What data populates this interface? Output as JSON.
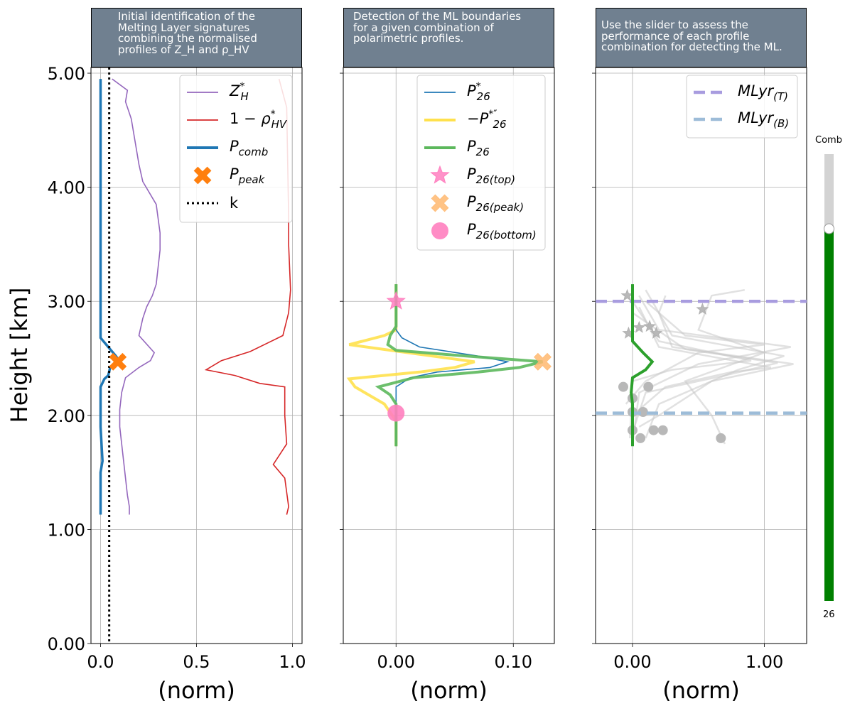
{
  "figure": {
    "ylabel": "Height [km]",
    "xlabel": "(norm)",
    "yticks": [
      "0.00",
      "1.00",
      "2.00",
      "3.00",
      "4.00",
      "5.00"
    ],
    "ylim": [
      0,
      5.05
    ]
  },
  "panels": [
    {
      "header_lines": [
        "Initial identification of the",
        "Melting Layer signatures",
        "combining the normalised",
        "profiles of Z_H and ρ_HV"
      ],
      "xticks": [
        "0.0",
        "0.5",
        "1.0"
      ],
      "xlim": [
        -0.05,
        1.05
      ],
      "legend": [
        {
          "label": "Z*_H",
          "color": "#9467bd",
          "kind": "line"
        },
        {
          "label": "1 − ρ*_HV",
          "color": "#d62728",
          "kind": "line"
        },
        {
          "label": "P_comb",
          "color": "#1f77b4",
          "kind": "thickline"
        },
        {
          "label": "P_peak",
          "color": "#ff7f0e",
          "kind": "cross"
        },
        {
          "label": "k",
          "color": "#000000",
          "kind": "dotted"
        }
      ]
    },
    {
      "header_lines": [
        "Detection of the ML boundaries",
        "for a given combination of",
        "polarimetric profiles."
      ],
      "xticks": [
        "0.00",
        "0.10"
      ],
      "xlim": [
        -0.045,
        0.135
      ],
      "legend": [
        {
          "label": "P*_26",
          "color": "#1f77b4",
          "kind": "line"
        },
        {
          "label": "−P*″_26",
          "color": "#ffe14d",
          "kind": "thickline"
        },
        {
          "label": "P_26",
          "color": "#5cb85c",
          "kind": "thickline"
        },
        {
          "label": "P_26(top)",
          "color": "#ff7fbf",
          "kind": "star"
        },
        {
          "label": "P_26(peak)",
          "color": "#ffb870",
          "kind": "cross"
        },
        {
          "label": "P_26(bottom)",
          "color": "#ff7fbf",
          "kind": "circle"
        }
      ]
    },
    {
      "header_lines": [
        "Use the slider to assess the",
        "performance of each profile",
        "combination for detecting the ML."
      ],
      "xticks": [
        "0.00",
        "1.00"
      ],
      "xlim": [
        -0.28,
        1.32
      ],
      "legend": [
        {
          "label": "MLyr_(T)",
          "color": "#a89cdf",
          "kind": "dashed"
        },
        {
          "label": "MLyr_(B)",
          "color": "#9dbcd8",
          "kind": "dashed"
        }
      ]
    }
  ],
  "slider": {
    "label": "Comb",
    "value": "26",
    "fill_fraction": 0.833,
    "fill_color": "#008000",
    "track_color": "#d3d3d3"
  },
  "chart_data": [
    {
      "type": "line",
      "panel": 1,
      "series": [
        {
          "name": "Z*_H",
          "color": "#9467bd",
          "points": [
            [
              0.15,
              1.13
            ],
            [
              0.15,
              1.2
            ],
            [
              0.14,
              1.3
            ],
            [
              0.13,
              1.45
            ],
            [
              0.12,
              1.6
            ],
            [
              0.11,
              1.75
            ],
            [
              0.1,
              1.9
            ],
            [
              0.1,
              2.05
            ],
            [
              0.11,
              2.2
            ],
            [
              0.13,
              2.33
            ],
            [
              0.2,
              2.42
            ],
            [
              0.26,
              2.48
            ],
            [
              0.28,
              2.55
            ],
            [
              0.2,
              2.7
            ],
            [
              0.22,
              2.85
            ],
            [
              0.24,
              2.95
            ],
            [
              0.27,
              3.05
            ],
            [
              0.29,
              3.15
            ],
            [
              0.3,
              3.3
            ],
            [
              0.31,
              3.45
            ],
            [
              0.31,
              3.6
            ],
            [
              0.29,
              3.85
            ],
            [
              0.22,
              4.05
            ],
            [
              0.2,
              4.2
            ],
            [
              0.18,
              4.4
            ],
            [
              0.16,
              4.6
            ],
            [
              0.13,
              4.75
            ],
            [
              0.14,
              4.85
            ],
            [
              0.06,
              4.95
            ]
          ]
        },
        {
          "name": "1 − ρ*_HV",
          "color": "#d62728",
          "points": [
            [
              0.97,
              1.13
            ],
            [
              0.98,
              1.2
            ],
            [
              0.96,
              1.45
            ],
            [
              0.9,
              1.57
            ],
            [
              0.97,
              1.75
            ],
            [
              0.96,
              2.0
            ],
            [
              0.96,
              2.25
            ],
            [
              0.83,
              2.28
            ],
            [
              0.7,
              2.35
            ],
            [
              0.55,
              2.4
            ],
            [
              0.63,
              2.48
            ],
            [
              0.78,
              2.56
            ],
            [
              0.95,
              2.7
            ],
            [
              0.98,
              2.9
            ],
            [
              0.99,
              3.1
            ],
            [
              0.98,
              3.5
            ],
            [
              0.98,
              3.75
            ],
            [
              0.97,
              4.7
            ],
            [
              0.93,
              4.95
            ]
          ]
        },
        {
          "name": "P_comb",
          "color": "#1f77b4",
          "points": [
            [
              0.0,
              1.13
            ],
            [
              0.0,
              1.5
            ],
            [
              0.01,
              1.6
            ],
            [
              0.0,
              1.9
            ],
            [
              0.0,
              2.25
            ],
            [
              0.02,
              2.32
            ],
            [
              0.04,
              2.35
            ],
            [
              0.05,
              2.42
            ],
            [
              0.1,
              2.47
            ],
            [
              0.08,
              2.52
            ],
            [
              0.04,
              2.6
            ],
            [
              0.0,
              2.68
            ],
            [
              0.0,
              3.0
            ],
            [
              0.0,
              4.95
            ]
          ]
        },
        {
          "name": "k",
          "color": "#000000",
          "x": 0.045
        },
        {
          "name": "P_peak",
          "color": "#ff7f0e",
          "points": [
            [
              0.09,
              2.47
            ]
          ]
        }
      ]
    },
    {
      "type": "line",
      "panel": 2,
      "series": [
        {
          "name": "P*_26",
          "color": "#1f77b4",
          "points": [
            [
              0.0,
              1.73
            ],
            [
              0.0,
              2.1
            ],
            [
              0.0,
              2.25
            ],
            [
              0.012,
              2.33
            ],
            [
              0.035,
              2.38
            ],
            [
              0.08,
              2.42
            ],
            [
              0.095,
              2.47
            ],
            [
              0.07,
              2.52
            ],
            [
              0.02,
              2.6
            ],
            [
              0.005,
              2.68
            ],
            [
              0.0,
              2.75
            ],
            [
              0.0,
              3.15
            ]
          ]
        },
        {
          "name": "−P*″_26",
          "color": "#ffe14d",
          "points": [
            [
              0.0,
              1.73
            ],
            [
              0.0,
              1.95
            ],
            [
              -0.01,
              2.1
            ],
            [
              -0.035,
              2.25
            ],
            [
              -0.04,
              2.32
            ],
            [
              0.02,
              2.38
            ],
            [
              0.05,
              2.42
            ],
            [
              0.067,
              2.47
            ],
            [
              0.01,
              2.55
            ],
            [
              -0.04,
              2.62
            ],
            [
              -0.01,
              2.7
            ],
            [
              0.0,
              2.75
            ],
            [
              0.0,
              3.15
            ]
          ]
        },
        {
          "name": "P_26",
          "color": "#5cb85c",
          "points": [
            [
              0.0,
              1.73
            ],
            [
              0.0,
              2.1
            ],
            [
              -0.005,
              2.18
            ],
            [
              -0.015,
              2.25
            ],
            [
              0.015,
              2.33
            ],
            [
              0.07,
              2.38
            ],
            [
              0.105,
              2.42
            ],
            [
              0.125,
              2.47
            ],
            [
              0.06,
              2.52
            ],
            [
              0.0,
              2.57
            ],
            [
              -0.007,
              2.62
            ],
            [
              -0.005,
              2.7
            ],
            [
              0.0,
              2.78
            ],
            [
              0.0,
              3.15
            ]
          ]
        },
        {
          "name": "P_26(top)",
          "color": "#ff7fbf",
          "points": [
            [
              0.0,
              3.0
            ]
          ]
        },
        {
          "name": "P_26(peak)",
          "color": "#ffb870",
          "points": [
            [
              0.125,
              2.47
            ]
          ]
        },
        {
          "name": "P_26(bottom)",
          "color": "#ff7fbf",
          "points": [
            [
              0.0,
              2.02
            ]
          ]
        }
      ]
    },
    {
      "type": "line",
      "panel": 3,
      "series": [
        {
          "name": "MLyr_(T)",
          "color": "#a89cdf",
          "y": 3.0
        },
        {
          "name": "MLyr_(B)",
          "color": "#9dbcd8",
          "y": 2.02
        },
        {
          "name": "P_26",
          "color": "#2ca02c",
          "points": [
            [
              0.0,
              1.73
            ],
            [
              0.0,
              2.1
            ],
            [
              -0.01,
              2.2
            ],
            [
              0.0,
              2.33
            ],
            [
              0.1,
              2.4
            ],
            [
              0.15,
              2.47
            ],
            [
              0.08,
              2.55
            ],
            [
              0.0,
              2.65
            ],
            [
              0.0,
              2.75
            ],
            [
              0.0,
              3.15
            ]
          ]
        },
        {
          "name": "grey",
          "color": "#c8c8c8",
          "lines": [
            [
              [
                0.0,
                1.75
              ],
              [
                0.05,
                2.2
              ],
              [
                0.5,
                2.45
              ],
              [
                1.2,
                2.6
              ],
              [
                0.2,
                2.75
              ],
              [
                0.05,
                3.05
              ]
            ],
            [
              [
                0.1,
                1.8
              ],
              [
                0.2,
                2.1
              ],
              [
                0.8,
                2.4
              ],
              [
                1.15,
                2.52
              ],
              [
                0.3,
                2.7
              ],
              [
                0.1,
                3.1
              ]
            ],
            [
              [
                -0.02,
                1.8
              ],
              [
                0.0,
                2.3
              ],
              [
                0.3,
                2.4
              ],
              [
                0.9,
                2.48
              ],
              [
                0.2,
                2.65
              ],
              [
                0.0,
                3.0
              ]
            ],
            [
              [
                0.0,
                1.85
              ],
              [
                0.1,
                2.2
              ],
              [
                0.7,
                2.35
              ],
              [
                1.1,
                2.46
              ],
              [
                0.4,
                2.58
              ],
              [
                0.0,
                2.9
              ]
            ],
            [
              [
                0.7,
                1.75
              ],
              [
                0.6,
                2.0
              ],
              [
                0.4,
                2.3
              ],
              [
                1.0,
                2.55
              ],
              [
                0.5,
                2.75
              ],
              [
                0.6,
                3.05
              ],
              [
                0.85,
                3.1
              ]
            ],
            [
              [
                0.05,
                1.9
              ],
              [
                0.2,
                2.0
              ],
              [
                0.6,
                2.3
              ],
              [
                1.22,
                2.45
              ],
              [
                0.3,
                2.6
              ],
              [
                0.2,
                2.9
              ],
              [
                0.25,
                3.05
              ]
            ],
            [
              [
                -0.05,
                2.1
              ],
              [
                0.1,
                2.3
              ],
              [
                0.5,
                2.55
              ],
              [
                1.0,
                2.62
              ],
              [
                0.4,
                2.7
              ],
              [
                0.1,
                3.0
              ]
            ],
            [
              [
                0.0,
                2.0
              ],
              [
                0.25,
                2.25
              ],
              [
                0.75,
                2.38
              ],
              [
                1.05,
                2.42
              ],
              [
                0.2,
                2.6
              ],
              [
                0.05,
                2.95
              ]
            ]
          ],
          "stars": [
            [
              0.53,
              2.93
            ],
            [
              -0.03,
              2.72
            ],
            [
              0.05,
              2.77
            ],
            [
              0.13,
              2.78
            ],
            [
              0.18,
              2.72
            ],
            [
              -0.04,
              3.05
            ]
          ],
          "circles": [
            [
              -0.07,
              2.25
            ],
            [
              0.12,
              2.25
            ],
            [
              0.0,
              2.03
            ],
            [
              0.08,
              2.03
            ],
            [
              0.0,
              1.87
            ],
            [
              0.16,
              1.87
            ],
            [
              0.23,
              1.87
            ],
            [
              0.06,
              1.8
            ],
            [
              0.67,
              1.8
            ],
            [
              0.0,
              2.15
            ]
          ]
        }
      ]
    }
  ]
}
